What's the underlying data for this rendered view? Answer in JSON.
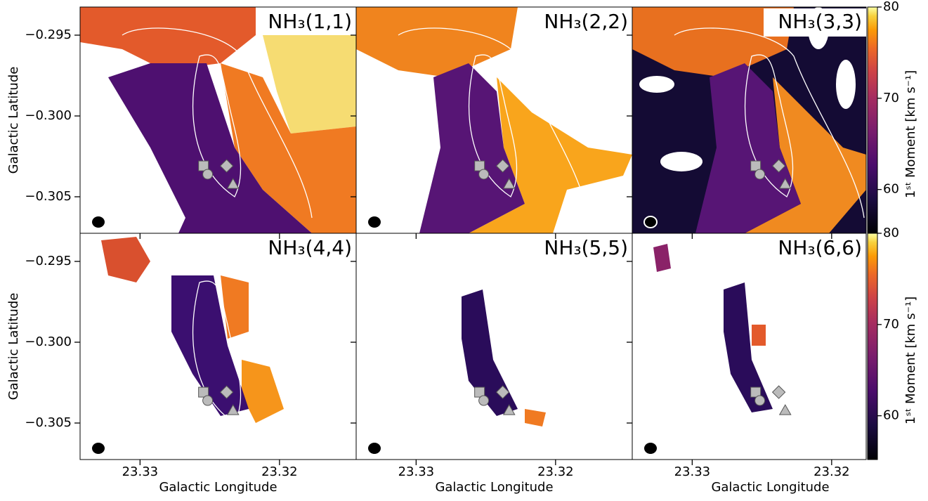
{
  "chart_data": [
    {
      "type": "heatmap",
      "title": "NH₃(1,1)",
      "ylabel": "Galactic Latitude",
      "xlim": [
        23.3343,
        23.3145
      ],
      "ylim": [
        -0.30726,
        -0.29326
      ],
      "xticks": [
        23.33,
        23.32
      ],
      "yticks": [
        {
          "value": -0.295,
          "label": "−0.295"
        },
        {
          "value": -0.3,
          "label": "−0.300"
        },
        {
          "value": -0.305,
          "label": "−0.305"
        }
      ],
      "markers": [
        {
          "shape": "square",
          "x": 23.32545,
          "y": -0.30309
        },
        {
          "shape": "circle",
          "x": 23.32515,
          "y": -0.30361
        },
        {
          "shape": "diamond",
          "x": 23.32379,
          "y": -0.30309
        },
        {
          "shape": "triangle",
          "x": 23.32333,
          "y": -0.30422
        }
      ]
    },
    {
      "type": "heatmap",
      "title": "NH₃(2,2)",
      "xlim": [
        23.3343,
        23.3145
      ],
      "ylim": [
        -0.30726,
        -0.29326
      ],
      "xticks": [
        23.33,
        23.32
      ],
      "yticks": [
        {
          "value": -0.295,
          "label": "−0.295"
        },
        {
          "value": -0.3,
          "label": "−0.300"
        },
        {
          "value": -0.305,
          "label": "−0.305"
        }
      ],
      "markers": [
        {
          "shape": "square",
          "x": 23.32545,
          "y": -0.30309
        },
        {
          "shape": "circle",
          "x": 23.32515,
          "y": -0.30361
        },
        {
          "shape": "diamond",
          "x": 23.32379,
          "y": -0.30309
        },
        {
          "shape": "triangle",
          "x": 23.32333,
          "y": -0.30422
        }
      ]
    },
    {
      "type": "heatmap",
      "title": "NH₃(3,3)",
      "xlim": [
        23.3343,
        23.3145
      ],
      "ylim": [
        -0.30726,
        -0.29326
      ],
      "xticks": [
        23.33,
        23.32
      ],
      "yticks": [
        {
          "value": -0.295,
          "label": "−0.295"
        },
        {
          "value": -0.3,
          "label": "−0.300"
        },
        {
          "value": -0.305,
          "label": "−0.305"
        }
      ],
      "markers": [
        {
          "shape": "square",
          "x": 23.32545,
          "y": -0.30309
        },
        {
          "shape": "circle",
          "x": 23.32515,
          "y": -0.30361
        },
        {
          "shape": "diamond",
          "x": 23.32379,
          "y": -0.30309
        },
        {
          "shape": "triangle",
          "x": 23.32333,
          "y": -0.30422
        }
      ],
      "colorbar": {
        "label": "1ˢᵗ Moment [km s⁻¹]",
        "lim": [
          55.2,
          80
        ],
        "ticks": [
          60,
          70,
          80
        ],
        "colormap": "inferno"
      }
    },
    {
      "type": "heatmap",
      "title": "NH₃(4,4)",
      "ylabel": "Galactic Latitude",
      "xlabel": "Galactic Longitude",
      "xlim": [
        23.3343,
        23.3145
      ],
      "ylim": [
        -0.30726,
        -0.29326
      ],
      "xticks": [
        23.33,
        23.32
      ],
      "yticks": [
        {
          "value": -0.295,
          "label": "−0.295"
        },
        {
          "value": -0.3,
          "label": "−0.300"
        },
        {
          "value": -0.305,
          "label": "−0.305"
        }
      ],
      "markers": [
        {
          "shape": "square",
          "x": 23.32545,
          "y": -0.30309
        },
        {
          "shape": "circle",
          "x": 23.32515,
          "y": -0.30361
        },
        {
          "shape": "diamond",
          "x": 23.32379,
          "y": -0.30309
        },
        {
          "shape": "triangle",
          "x": 23.32333,
          "y": -0.30422
        }
      ]
    },
    {
      "type": "heatmap",
      "title": "NH₃(5,5)",
      "xlabel": "Galactic Longitude",
      "xlim": [
        23.3343,
        23.3145
      ],
      "ylim": [
        -0.30726,
        -0.29326
      ],
      "xticks": [
        23.33,
        23.32
      ],
      "yticks": [
        {
          "value": -0.295,
          "label": "−0.295"
        },
        {
          "value": -0.3,
          "label": "−0.300"
        },
        {
          "value": -0.305,
          "label": "−0.305"
        }
      ],
      "markers": [
        {
          "shape": "square",
          "x": 23.32545,
          "y": -0.30309
        },
        {
          "shape": "circle",
          "x": 23.32515,
          "y": -0.30361
        },
        {
          "shape": "diamond",
          "x": 23.32379,
          "y": -0.30309
        },
        {
          "shape": "triangle",
          "x": 23.32333,
          "y": -0.30422
        }
      ]
    },
    {
      "type": "heatmap",
      "title": "NH₃(6,6)",
      "xlabel": "Galactic Longitude",
      "xlim": [
        23.3343,
        23.3145
      ],
      "ylim": [
        -0.30726,
        -0.29326
      ],
      "xticks": [
        23.33,
        23.32
      ],
      "yticks": [
        {
          "value": -0.295,
          "label": "−0.295"
        },
        {
          "value": -0.3,
          "label": "−0.300"
        },
        {
          "value": -0.305,
          "label": "−0.305"
        }
      ],
      "markers": [
        {
          "shape": "square",
          "x": 23.32545,
          "y": -0.30309
        },
        {
          "shape": "circle",
          "x": 23.32515,
          "y": -0.30361
        },
        {
          "shape": "diamond",
          "x": 23.32379,
          "y": -0.30309
        },
        {
          "shape": "triangle",
          "x": 23.32333,
          "y": -0.30422
        }
      ],
      "colorbar": {
        "label": "1ˢᵗ Moment [km s⁻¹]",
        "lim": [
          55.2,
          80
        ],
        "ticks": [
          60,
          70,
          80
        ],
        "colormap": "inferno"
      }
    }
  ]
}
